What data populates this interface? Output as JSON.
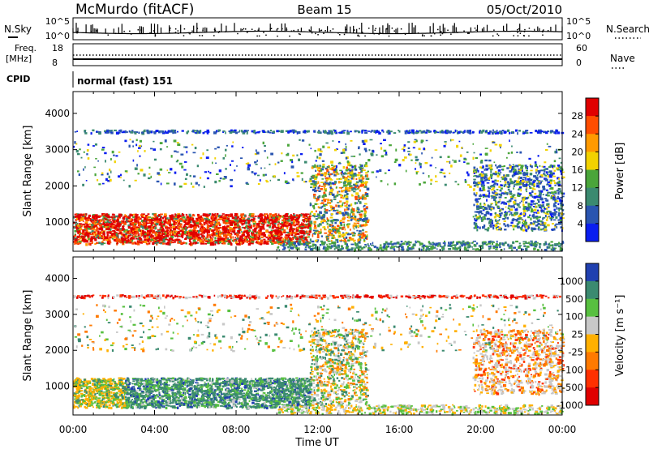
{
  "header": {
    "station": "McMurdo (fitACF)",
    "beam": "Beam 15",
    "date": "05/Oct/2010"
  },
  "top_panels": {
    "nsky_label": "N.Sky",
    "nsky_ticks": [
      "10^5",
      "10^0"
    ],
    "nsearch_label": "N.Search",
    "nsearch_ticks": [
      "10^5",
      "10^0"
    ],
    "freq_label": "Freq.",
    "freq_unit": "[MHz]",
    "freq_ticks": [
      "18",
      "8"
    ],
    "nave_label": "Nave",
    "nave_ticks": [
      "60",
      "0"
    ],
    "cpid_label": "CPID",
    "cpid_value": "normal (fast) 151"
  },
  "chart_data": [
    {
      "type": "heatmap",
      "parameter": "Power",
      "colorbar_label": "Power [dB]",
      "ylabel": "Slant Range [km]",
      "ylim": [
        200,
        4600
      ],
      "y_ticks": [
        "4000",
        "3000",
        "2000",
        "1000"
      ],
      "xlim_hours": [
        0,
        24
      ],
      "colorbar_ticks": [
        "28",
        "24",
        "20",
        "16",
        "12",
        "8",
        "4"
      ],
      "colorbar_colors": [
        "#e00000",
        "#ff4d00",
        "#ff9a00",
        "#f2d200",
        "#4aa53a",
        "#3b8a70",
        "#2a55b0",
        "#0a1ef0"
      ],
      "grid": false,
      "echo_regions": [
        {
          "t_start": 0.0,
          "t_end": 11.6,
          "range_low": 400,
          "range_high": 1250,
          "level": "24-28 dB"
        },
        {
          "t_start": 11.6,
          "t_end": 14.4,
          "range_low": 500,
          "range_high": 2600,
          "level": "8-20 dB"
        },
        {
          "t_start": 19.6,
          "t_end": 24.0,
          "range_low": 800,
          "range_high": 2600,
          "level": "4-12 dB"
        }
      ]
    },
    {
      "type": "heatmap",
      "parameter": "Velocity",
      "colorbar_label": "Velocity [m s⁻¹]",
      "ylabel": "Slant Range [km]",
      "ylim": [
        200,
        4600
      ],
      "y_ticks": [
        "4000",
        "3000",
        "2000",
        "1000"
      ],
      "xlim_hours": [
        0,
        24
      ],
      "colorbar_ticks": [
        "1000",
        "500",
        "100",
        "25",
        "-25",
        "-100",
        "-500",
        "-1000"
      ],
      "colorbar_colors": [
        "#2040b0",
        "#3b8a70",
        "#58c040",
        "#c8c8c8",
        "#ffb000",
        "#ff7a00",
        "#ff3000",
        "#e00000"
      ],
      "grid": false,
      "x_ticks": [
        "00:00",
        "04:00",
        "08:00",
        "12:00",
        "16:00",
        "20:00",
        "00:00"
      ],
      "xlabel": "Time UT"
    }
  ]
}
